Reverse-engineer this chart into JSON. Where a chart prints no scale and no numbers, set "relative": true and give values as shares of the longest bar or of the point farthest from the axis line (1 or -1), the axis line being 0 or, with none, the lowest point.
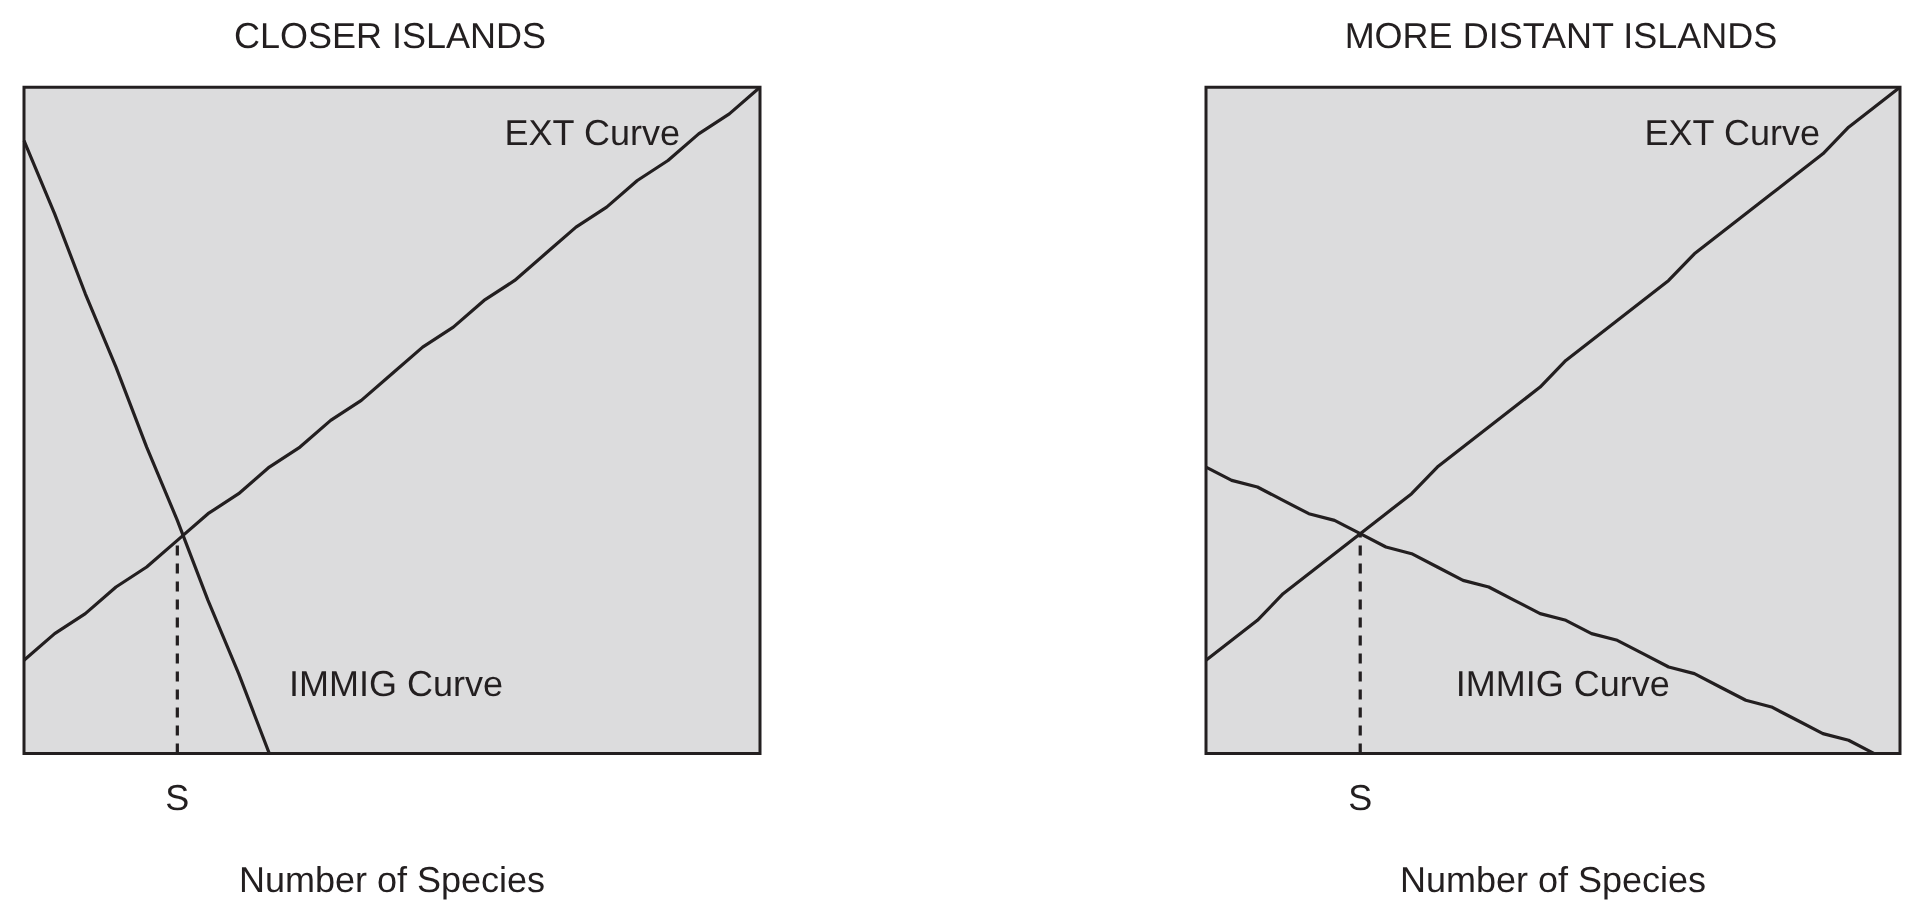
{
  "chart_data": [
    {
      "type": "line",
      "title": "CLOSER ISLANDS",
      "xlabel": "Number of Species",
      "relative": true,
      "grid": false,
      "legend": false,
      "marker": "none",
      "categories": [
        null,
        null,
        null,
        null,
        null,
        null,
        null,
        null,
        null,
        null,
        null,
        null,
        null,
        null,
        null,
        null,
        null,
        null,
        null,
        null,
        null,
        null,
        null,
        null,
        null
      ],
      "series": [
        {
          "name": "EXT Curve",
          "color": "#231f20",
          "values": [
            0.14,
            0.18,
            0.21,
            0.25,
            0.28,
            0.32,
            0.36,
            0.39,
            0.43,
            0.46,
            0.5,
            0.53,
            0.57,
            0.61,
            0.64,
            0.68,
            0.71,
            0.75,
            0.79,
            0.82,
            0.86,
            0.89,
            0.93,
            0.96,
            1
          ]
        },
        {
          "name": "IMMIG Curve",
          "color": "#231f20",
          "values": [
            0.92,
            0.81,
            0.69,
            0.58,
            0.46,
            0.35,
            0.23,
            0.12,
            0,
            null,
            null,
            null,
            null,
            null,
            null,
            null,
            null,
            null,
            null,
            null,
            null,
            null,
            null,
            null,
            null
          ]
        }
      ],
      "annotations": [
        "S"
      ]
    },
    {
      "type": "line",
      "title": "MORE DISTANT ISLANDS",
      "xlabel": "Number of Species",
      "relative": true,
      "grid": false,
      "legend": false,
      "marker": "none",
      "categories": [
        null,
        null,
        null,
        null,
        null,
        null,
        null,
        null,
        null,
        null,
        null,
        null,
        null,
        null,
        null,
        null,
        null,
        null,
        null,
        null,
        null,
        null,
        null,
        null,
        null,
        null,
        null,
        null
      ],
      "series": [
        {
          "name": "EXT Curve",
          "color": "#231f20",
          "values": [
            0.14,
            0.17,
            0.2,
            0.24,
            0.27,
            0.3,
            0.33,
            0.36,
            0.39,
            0.43,
            0.46,
            0.49,
            0.52,
            0.55,
            0.59,
            0.62,
            0.65,
            0.68,
            0.71,
            0.75,
            0.78,
            0.81,
            0.84,
            0.87,
            0.9,
            0.94,
            0.97,
            1
          ]
        },
        {
          "name": "IMMIG Curve",
          "color": "#231f20",
          "values": [
            0.43,
            0.41,
            0.4,
            0.38,
            0.36,
            0.35,
            0.33,
            0.31,
            0.3,
            0.28,
            0.26,
            0.25,
            0.23,
            0.21,
            0.2,
            0.18,
            0.17,
            0.15,
            0.13,
            0.12,
            0.1,
            0.08,
            0.07,
            0.05,
            0.03,
            0.02,
            0,
            null
          ]
        }
      ],
      "annotations": [
        "S"
      ]
    }
  ]
}
